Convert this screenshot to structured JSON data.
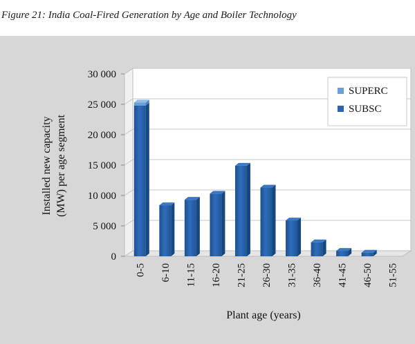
{
  "caption": "Figure 21: India Coal-Fired Generation by Age and Boiler Technology",
  "chart_data": {
    "type": "bar",
    "title": "Figure 21: India Coal-Fired Generation by Age and Boiler Technology",
    "xlabel": "Plant age (years)",
    "ylabel_lines": [
      "Installed new capacity",
      "(MW) per age segment"
    ],
    "ylim": [
      0,
      30000
    ],
    "yticks": [
      0,
      5000,
      10000,
      15000,
      20000,
      25000,
      30000
    ],
    "ytick_labels": [
      "0",
      "5 000",
      "10 000",
      "15 000",
      "20 000",
      "25 000",
      "30 000"
    ],
    "categories": [
      "0-5",
      "6-10",
      "11-15",
      "16-20",
      "21-25",
      "26-30",
      "31-35",
      "36-40",
      "41-45",
      "46-50",
      "51-55"
    ],
    "series": [
      {
        "name": "SUBSC",
        "color": "#2a64ad",
        "values": [
          24800,
          8400,
          9300,
          10300,
          14900,
          11300,
          5900,
          2300,
          900,
          600,
          0
        ]
      },
      {
        "name": "SUPERC",
        "color": "#6aa0d8",
        "values": [
          500,
          0,
          0,
          0,
          0,
          0,
          0,
          0,
          0,
          0,
          0
        ]
      }
    ],
    "legend": {
      "position": "top-right",
      "entries": [
        "SUPERC",
        "SUBSC"
      ]
    },
    "grid": true
  }
}
